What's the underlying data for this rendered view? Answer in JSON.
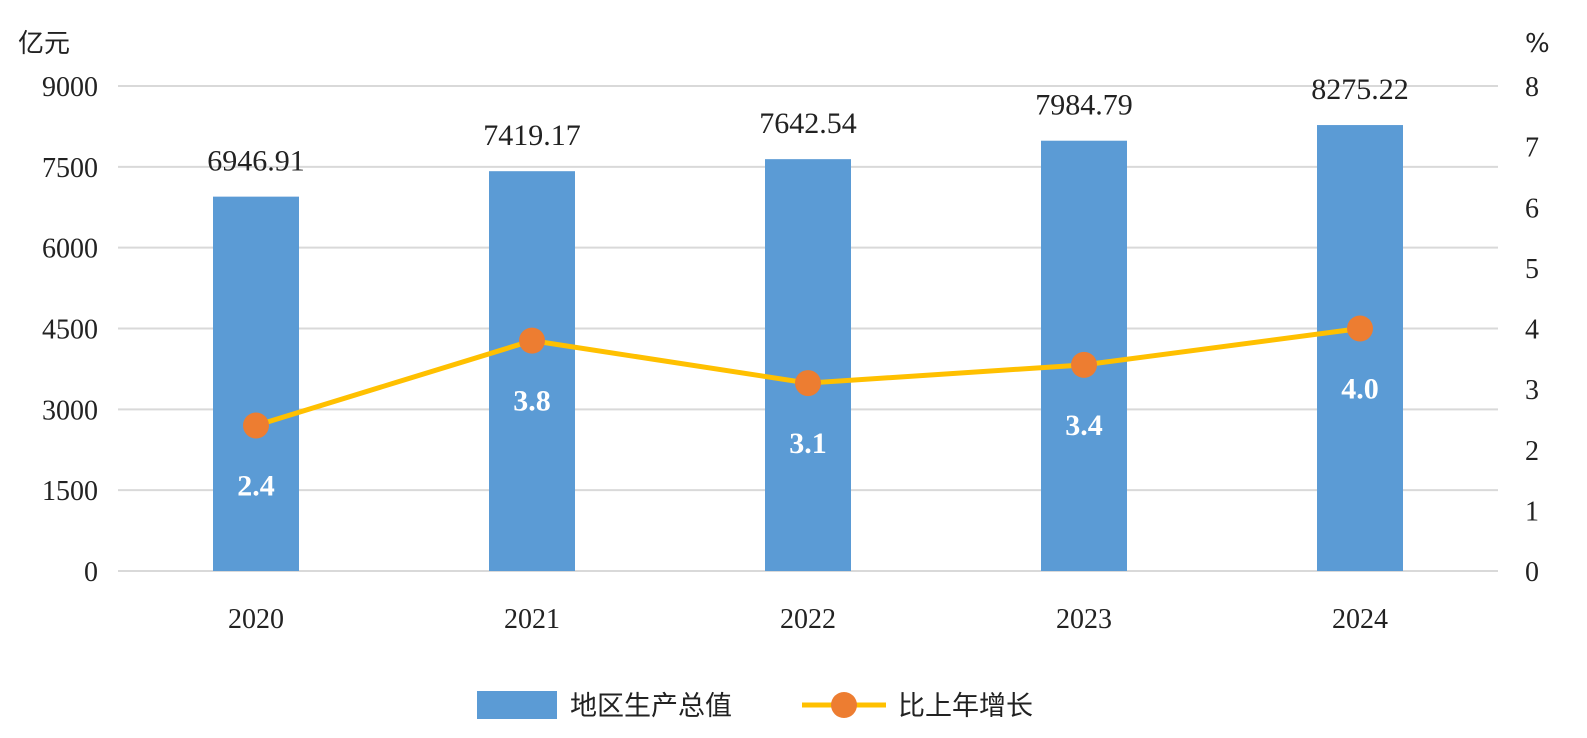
{
  "chart_data": {
    "type": "bar",
    "categories": [
      "2020",
      "2021",
      "2022",
      "2023",
      "2024"
    ],
    "series": [
      {
        "name": "地区生产总值",
        "type": "bar",
        "axis": "left",
        "values": [
          6946.91,
          7419.17,
          7642.54,
          7984.79,
          8275.22
        ],
        "labels": [
          "6946.91",
          "7419.17",
          "7642.54",
          "7984.79",
          "8275.22"
        ],
        "color": "#5b9bd5"
      },
      {
        "name": "比上年增长",
        "type": "line",
        "axis": "right",
        "values": [
          2.4,
          3.8,
          3.1,
          3.4,
          4.0
        ],
        "labels": [
          "2.4",
          "3.8",
          "3.1",
          "3.4",
          "4.0"
        ],
        "line_color": "#ffc000",
        "marker_color": "#ed7d31"
      }
    ],
    "y_left": {
      "unit": "亿元",
      "ylim": [
        0,
        9000
      ],
      "ticks": [
        "0",
        "1500",
        "3000",
        "4500",
        "6000",
        "7500",
        "9000"
      ]
    },
    "y_right": {
      "unit": "%",
      "ylim": [
        0,
        8
      ],
      "ticks": [
        "0",
        "1",
        "2",
        "3",
        "4",
        "5",
        "6",
        "7",
        "8"
      ]
    },
    "grid": true,
    "legend": "bottom-center",
    "gridline_color": "#d9d9d9"
  }
}
